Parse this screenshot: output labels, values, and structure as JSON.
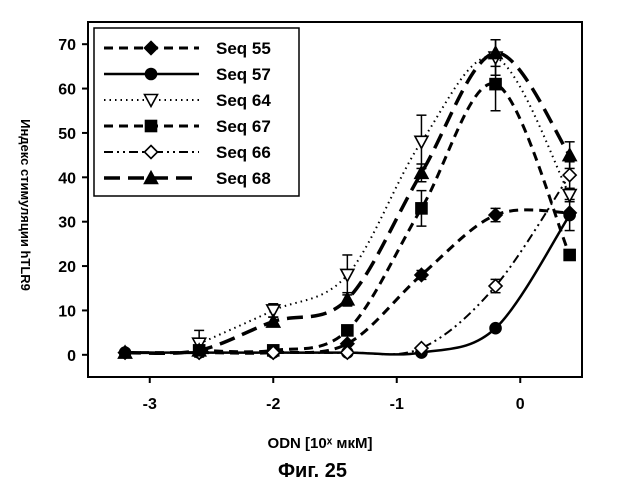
{
  "caption": "Фиг. 25",
  "chart_data": {
    "type": "line",
    "title": "",
    "xlabel": "ODN [10ˣ мкМ]",
    "ylabel": "Индекс стимуляции hTLR9",
    "xlim": [
      -3.5,
      0.5
    ],
    "ylim": [
      -5,
      75
    ],
    "xticks": [
      -3,
      -2,
      -1,
      0
    ],
    "xtick_labels": [
      "-3",
      "-2",
      "-1",
      "0"
    ],
    "yticks": [
      0,
      10,
      20,
      30,
      40,
      50,
      60,
      70
    ],
    "ytick_labels": [
      "0",
      "10",
      "20",
      "30",
      "40",
      "50",
      "60",
      "70"
    ],
    "grid": false,
    "legend_position": "top-left",
    "series": [
      {
        "name": "Seq 55",
        "marker": "diamond-filled",
        "line": "dash",
        "x": [
          -3.2,
          -2.6,
          -2.0,
          -1.4,
          -0.8,
          -0.2,
          0.4
        ],
        "y": [
          0.5,
          0.5,
          0.5,
          2.5,
          18,
          31.5,
          32
        ],
        "err": [
          0,
          0,
          0,
          0,
          1,
          1.5,
          0
        ]
      },
      {
        "name": "Seq 57",
        "marker": "circle-filled",
        "line": "solid",
        "x": [
          -3.2,
          -2.6,
          -2.0,
          -1.4,
          -0.8,
          -0.2,
          0.4
        ],
        "y": [
          0.5,
          0.5,
          0.5,
          0.5,
          0.5,
          6,
          31.5
        ],
        "err": [
          0,
          0,
          0,
          0,
          0,
          0,
          3.5
        ]
      },
      {
        "name": "Seq 64",
        "marker": "triangle-down-open",
        "line": "dot",
        "x": [
          -2.6,
          -2.0,
          -1.4,
          -0.8,
          -0.2,
          0.4
        ],
        "y": [
          2.5,
          10,
          18,
          48,
          67,
          36
        ],
        "err": [
          3,
          1.5,
          4.5,
          6,
          4,
          1.5
        ]
      },
      {
        "name": "Seq 67",
        "marker": "square-filled",
        "line": "dash",
        "x": [
          -2.6,
          -2.0,
          -1.4,
          -0.8,
          -0.2,
          0.4
        ],
        "y": [
          1,
          1,
          5.5,
          33,
          61,
          22.5
        ],
        "err": [
          0,
          0,
          1,
          4,
          6,
          1
        ]
      },
      {
        "name": "Seq 66",
        "marker": "diamond-open",
        "line": "dash-dot-dot",
        "x": [
          -2.6,
          -2.0,
          -1.4,
          -0.8,
          -0.2,
          0.4
        ],
        "y": [
          0.5,
          0.5,
          0.5,
          1.5,
          15.5,
          40.5
        ],
        "err": [
          0,
          0,
          0,
          0,
          1.5,
          3
        ]
      },
      {
        "name": "Seq 68",
        "marker": "triangle-up-filled",
        "line": "long-dash",
        "x": [
          -3.2,
          -2.6,
          -2.0,
          -1.4,
          -0.8,
          -0.2,
          0.4
        ],
        "y": [
          0.5,
          1,
          7.5,
          12.5,
          41,
          68,
          45
        ],
        "err": [
          0,
          0,
          1,
          1.5,
          2,
          3,
          3
        ]
      }
    ]
  }
}
